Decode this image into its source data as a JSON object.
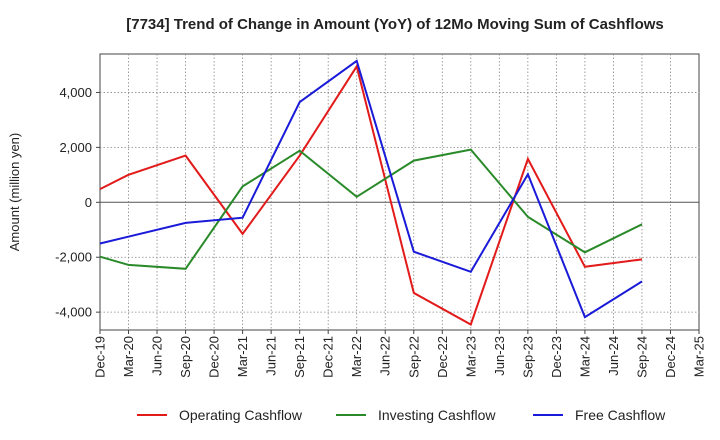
{
  "chart_data": {
    "type": "line",
    "title": "[7734]  Trend of Change in Amount (YoY) of 12Mo Moving Sum of Cashflows",
    "xlabel": "",
    "ylabel": "Amount (million yen)",
    "ylim": [
      -4650,
      5400
    ],
    "yticks": [
      -4000,
      -2000,
      0,
      2000,
      4000
    ],
    "ytick_labels": [
      "-4,000",
      "-2,000",
      "0",
      "2,000",
      "4,000"
    ],
    "categories": [
      "Dec-19",
      "Mar-20",
      "Jun-20",
      "Sep-20",
      "Dec-20",
      "Mar-21",
      "Jun-21",
      "Sep-21",
      "Dec-21",
      "Mar-22",
      "Jun-22",
      "Sep-22",
      "Dec-22",
      "Mar-23",
      "Jun-23",
      "Sep-23",
      "Dec-23",
      "Mar-24",
      "Jun-24",
      "Sep-24",
      "Dec-24",
      "Mar-25"
    ],
    "grid": true,
    "legend_position": "bottom",
    "series": [
      {
        "name": "Operating Cashflow",
        "color": "#e31a1a",
        "points": [
          [
            0,
            480
          ],
          [
            1,
            1000
          ],
          [
            3,
            1700
          ],
          [
            5,
            -1150
          ],
          [
            7,
            1700
          ],
          [
            9,
            4950
          ],
          [
            11,
            -3300
          ],
          [
            13,
            -4450
          ],
          [
            15,
            1580
          ],
          [
            17,
            -2350
          ],
          [
            19,
            -2080
          ]
        ]
      },
      {
        "name": "Investing Cashflow",
        "color": "#2a8a2a",
        "points": [
          [
            0,
            -1980
          ],
          [
            1,
            -2280
          ],
          [
            3,
            -2420
          ],
          [
            5,
            580
          ],
          [
            7,
            1880
          ],
          [
            9,
            200
          ],
          [
            11,
            1520
          ],
          [
            13,
            1920
          ],
          [
            15,
            -530
          ],
          [
            17,
            -1820
          ],
          [
            19,
            -800
          ]
        ]
      },
      {
        "name": "Free Cashflow",
        "color": "#1a1ad9",
        "points": [
          [
            0,
            -1500
          ],
          [
            3,
            -750
          ],
          [
            5,
            -560
          ],
          [
            7,
            3650
          ],
          [
            9,
            5150
          ],
          [
            11,
            -1800
          ],
          [
            13,
            -2530
          ],
          [
            15,
            1020
          ],
          [
            17,
            -4180
          ],
          [
            19,
            -2880
          ]
        ]
      }
    ]
  }
}
